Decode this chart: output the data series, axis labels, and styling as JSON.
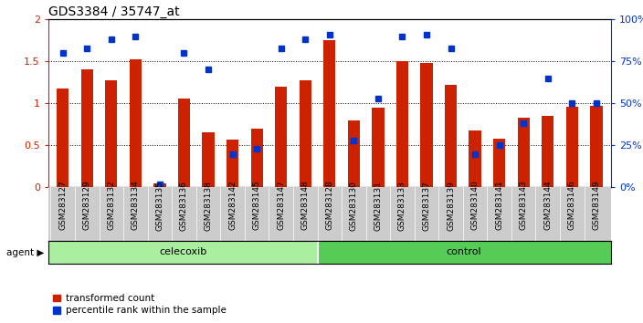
{
  "title": "GDS3384 / 35747_at",
  "samples": [
    "GSM283127",
    "GSM283129",
    "GSM283132",
    "GSM283134",
    "GSM283135",
    "GSM283136",
    "GSM283138",
    "GSM283142",
    "GSM283145",
    "GSM283147",
    "GSM283148",
    "GSM283128",
    "GSM283130",
    "GSM283131",
    "GSM283133",
    "GSM283137",
    "GSM283139",
    "GSM283140",
    "GSM283141",
    "GSM283143",
    "GSM283144",
    "GSM283146",
    "GSM283149"
  ],
  "transformed_count": [
    1.18,
    1.4,
    1.27,
    1.52,
    0.05,
    1.06,
    0.65,
    0.57,
    0.7,
    1.2,
    1.27,
    1.75,
    0.8,
    0.95,
    1.5,
    1.48,
    1.22,
    0.68,
    0.58,
    0.83,
    0.85,
    0.96,
    0.97
  ],
  "percentile_rank": [
    80,
    83,
    88,
    90,
    2,
    80,
    70,
    20,
    23,
    83,
    88,
    91,
    28,
    53,
    90,
    91,
    83,
    20,
    25,
    38,
    65,
    50,
    50
  ],
  "red_color": "#cc2200",
  "blue_color": "#0033cc",
  "bar_width": 0.5,
  "ylim_left": [
    0,
    2
  ],
  "ylim_right": [
    0,
    100
  ],
  "yticks_left": [
    0,
    0.5,
    1.0,
    1.5,
    2.0
  ],
  "ytick_labels_left": [
    "0",
    "0.5",
    "1",
    "1.5",
    "2"
  ],
  "yticks_right": [
    0,
    25,
    50,
    75,
    100
  ],
  "ytick_labels_right": [
    "0%",
    "25%",
    "50%",
    "75%",
    "100%"
  ],
  "hlines": [
    0.5,
    1.0,
    1.5
  ],
  "celecoxib_count": 11,
  "control_count": 12,
  "agent_label": "agent",
  "celecoxib_label": "celecoxib",
  "control_label": "control",
  "legend_red": "transformed count",
  "legend_blue": "percentile rank within the sample",
  "green_celecoxib": "#aaeea0",
  "green_control": "#55cc55"
}
